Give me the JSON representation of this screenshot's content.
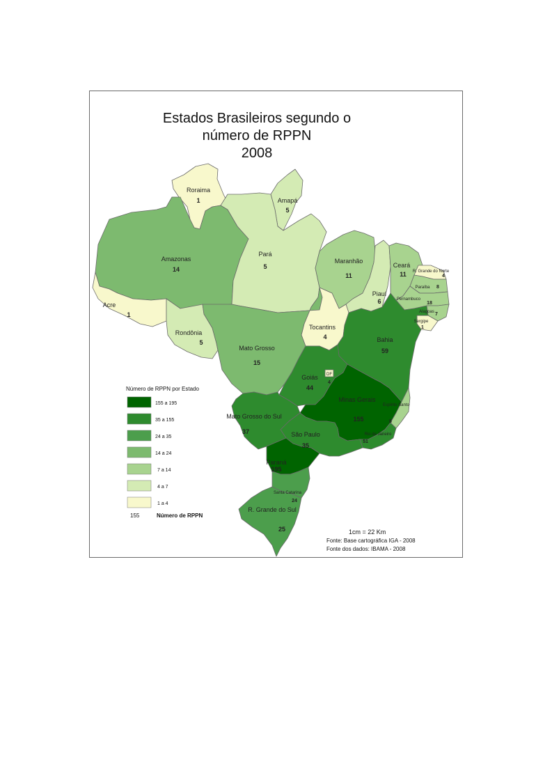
{
  "title_lines": [
    "Estados Brasileiros segundo o",
    "número de RPPN",
    "2008"
  ],
  "legend": {
    "title": "Número de RPPN por Estado",
    "classes": [
      {
        "label": "155 a 195",
        "color": "#006400"
      },
      {
        "label": "35 a 155",
        "color": "#2e8b2e"
      },
      {
        "label": "24 a  35",
        "color": "#4c9e4c"
      },
      {
        "label": "14 a  24",
        "color": "#7dba6f"
      },
      {
        "label": "7 a  14",
        "color": "#a8d38f"
      },
      {
        "label": "4 a   7",
        "color": "#d4ebb4"
      },
      {
        "label": "1 a   4",
        "color": "#f8f8cc"
      }
    ],
    "key_number": "155",
    "key_label": "Número de RPPN"
  },
  "states": [
    {
      "id": "roraima",
      "name": "Roraima",
      "value": "1"
    },
    {
      "id": "amapa",
      "name": "Amapá",
      "value": "5"
    },
    {
      "id": "amazonas",
      "name": "Amazonas",
      "value": "14"
    },
    {
      "id": "para",
      "name": "Pará",
      "value": "5"
    },
    {
      "id": "maranhao",
      "name": "Maranhão",
      "value": "11"
    },
    {
      "id": "ceara",
      "name": "Ceará",
      "value": "11"
    },
    {
      "id": "rgnorte",
      "name": "R. Grande do Norte",
      "value": "4"
    },
    {
      "id": "paraiba",
      "name": "Paraíba",
      "value": "8"
    },
    {
      "id": "pernambuco",
      "name": "Pernambuco",
      "value": "18"
    },
    {
      "id": "alagoas",
      "name": "Alagoas",
      "value": "7"
    },
    {
      "id": "sergipe",
      "name": "Sergipe",
      "value": "1"
    },
    {
      "id": "piaui",
      "name": "Piauí",
      "value": "6"
    },
    {
      "id": "acre",
      "name": "Acre",
      "value": "1"
    },
    {
      "id": "rondonia",
      "name": "Rondônia",
      "value": "5"
    },
    {
      "id": "tocantins",
      "name": "Tocantins",
      "value": "4"
    },
    {
      "id": "bahia",
      "name": "Bahia",
      "value": "59"
    },
    {
      "id": "matogrosso",
      "name": "Mato Grosso",
      "value": "15"
    },
    {
      "id": "goias",
      "name": "Goiás",
      "value": "44"
    },
    {
      "id": "df",
      "name": "DF",
      "value": "4"
    },
    {
      "id": "minas",
      "name": "Minas Gerais",
      "value": "155"
    },
    {
      "id": "espiritosanto",
      "name": "Espírito Santo",
      "value": "8"
    },
    {
      "id": "riodejaneiro",
      "name": "Rio de Janeiro",
      "value": "51"
    },
    {
      "id": "saopaulo",
      "name": "São Paulo",
      "value": "35"
    },
    {
      "id": "matogrossosul",
      "name": "Mato Grosso do Sul",
      "value": "37"
    },
    {
      "id": "parana",
      "name": "Paraná",
      "value": "195"
    },
    {
      "id": "santacatarina",
      "name": "Santa Catarina",
      "value": "24"
    },
    {
      "id": "rgsul",
      "name": "R. Grande do Sul",
      "value": "25"
    }
  ],
  "footer": {
    "scale": "1cm = 22 Km",
    "source_base": "Fonte: Base cartográfica IGA - 2008",
    "source_data": "Fonte dos dados: IBAMA - 2008"
  }
}
